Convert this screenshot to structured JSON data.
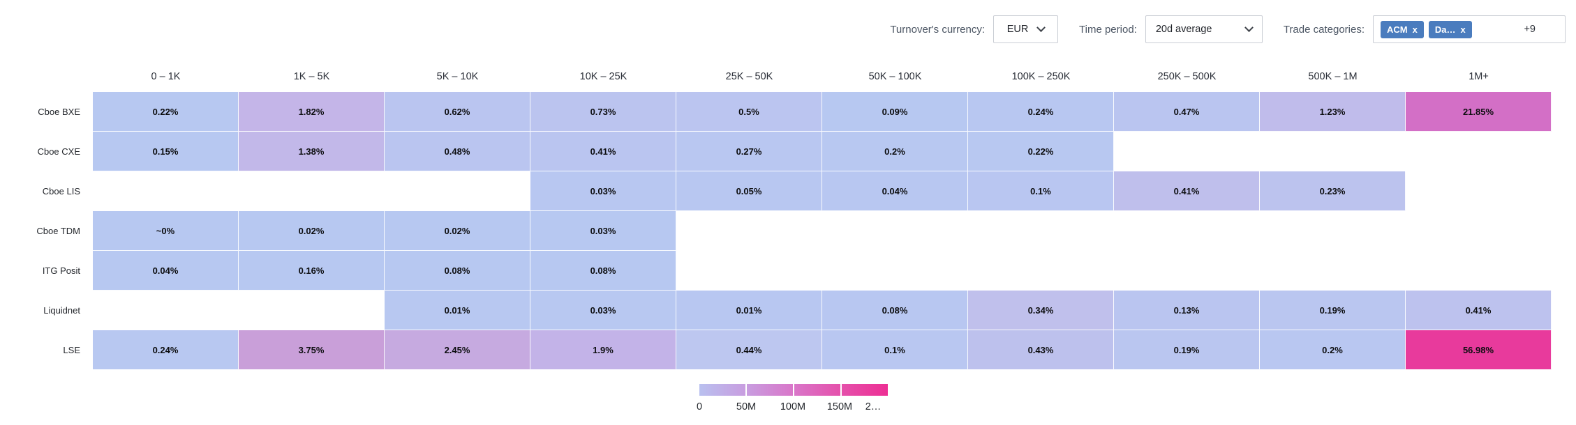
{
  "controls": {
    "currency": {
      "label": "Turnover's currency:",
      "value": "EUR"
    },
    "period": {
      "label": "Time period:",
      "value": "20d average"
    },
    "categories": {
      "label": "Trade categories:",
      "chips": [
        {
          "text": "ACM",
          "remove_icon": "x"
        },
        {
          "text": "Da…",
          "remove_icon": "x"
        }
      ],
      "more": "+9",
      "chip_color": "#4a7cbe"
    }
  },
  "chart_data": {
    "type": "heatmap",
    "title": "",
    "xlabel": "",
    "ylabel": "",
    "columns": [
      "0 – 1K",
      "1K – 5K",
      "5K – 10K",
      "10K – 25K",
      "25K – 50K",
      "50K – 100K",
      "100K – 250K",
      "250K – 500K",
      "500K – 1M",
      "1M+"
    ],
    "rows": [
      {
        "label": "Cboe BXE",
        "cells": [
          {
            "value": "0.22%",
            "color": "#b7c8f1"
          },
          {
            "value": "1.82%",
            "color": "#c4b5e8"
          },
          {
            "value": "0.62%",
            "color": "#bac5f0"
          },
          {
            "value": "0.73%",
            "color": "#bbc4ef"
          },
          {
            "value": "0.5%",
            "color": "#bbc5f0"
          },
          {
            "value": "0.09%",
            "color": "#b7c8f1"
          },
          {
            "value": "0.24%",
            "color": "#b8c7f1"
          },
          {
            "value": "0.47%",
            "color": "#bac5f0"
          },
          {
            "value": "1.23%",
            "color": "#c0bceb"
          },
          {
            "value": "21.85%",
            "color": "#d36fc6"
          }
        ]
      },
      {
        "label": "Cboe CXE",
        "cells": [
          {
            "value": "0.15%",
            "color": "#b7c8f1"
          },
          {
            "value": "1.38%",
            "color": "#c2b8e9"
          },
          {
            "value": "0.48%",
            "color": "#bac5f0"
          },
          {
            "value": "0.41%",
            "color": "#bac5f0"
          },
          {
            "value": "0.27%",
            "color": "#b9c7f1"
          },
          {
            "value": "0.2%",
            "color": "#b8c8f1"
          },
          {
            "value": "0.22%",
            "color": "#b8c8f1"
          },
          null,
          null,
          null
        ]
      },
      {
        "label": "Cboe LIS",
        "cells": [
          null,
          null,
          null,
          {
            "value": "0.03%",
            "color": "#b8c7f1"
          },
          {
            "value": "0.05%",
            "color": "#b8c7f1"
          },
          {
            "value": "0.04%",
            "color": "#b8c7f1"
          },
          {
            "value": "0.1%",
            "color": "#b9c6f1"
          },
          {
            "value": "0.41%",
            "color": "#bfbfec"
          },
          {
            "value": "0.23%",
            "color": "#bcc3ee"
          },
          null
        ]
      },
      {
        "label": "Cboe TDM",
        "cells": [
          {
            "value": "~0%",
            "color": "#b7c8f1"
          },
          {
            "value": "0.02%",
            "color": "#b7c8f1"
          },
          {
            "value": "0.02%",
            "color": "#b7c8f1"
          },
          {
            "value": "0.03%",
            "color": "#b7c8f1"
          },
          null,
          null,
          null,
          null,
          null,
          null
        ]
      },
      {
        "label": "ITG Posit",
        "cells": [
          {
            "value": "0.04%",
            "color": "#b7c8f1"
          },
          {
            "value": "0.16%",
            "color": "#b7c8f1"
          },
          {
            "value": "0.08%",
            "color": "#b7c8f1"
          },
          {
            "value": "0.08%",
            "color": "#b7c8f1"
          },
          null,
          null,
          null,
          null,
          null,
          null
        ]
      },
      {
        "label": "Liquidnet",
        "cells": [
          null,
          null,
          {
            "value": "0.01%",
            "color": "#b8c8f1"
          },
          {
            "value": "0.03%",
            "color": "#b8c8f1"
          },
          {
            "value": "0.01%",
            "color": "#b8c7f1"
          },
          {
            "value": "0.08%",
            "color": "#b8c7f1"
          },
          {
            "value": "0.34%",
            "color": "#c0c0ec"
          },
          {
            "value": "0.13%",
            "color": "#bac5f0"
          },
          {
            "value": "0.19%",
            "color": "#bac6f0"
          },
          {
            "value": "0.41%",
            "color": "#bdc2ee"
          }
        ]
      },
      {
        "label": "LSE",
        "cells": [
          {
            "value": "0.24%",
            "color": "#b8c8f1"
          },
          {
            "value": "3.75%",
            "color": "#c99fd9"
          },
          {
            "value": "2.45%",
            "color": "#c6aae0"
          },
          {
            "value": "1.9%",
            "color": "#c3b3e8"
          },
          {
            "value": "0.44%",
            "color": "#bdc7f0"
          },
          {
            "value": "0.1%",
            "color": "#b9c7f1"
          },
          {
            "value": "0.43%",
            "color": "#bdc1ed"
          },
          {
            "value": "0.19%",
            "color": "#bac6f0"
          },
          {
            "value": "0.2%",
            "color": "#b9c7f1"
          },
          {
            "value": "56.98%",
            "color": "#e83a9c"
          }
        ]
      }
    ],
    "legend": {
      "ticks": [
        "0",
        "50M",
        "100M",
        "150M",
        "2…"
      ],
      "gradient_stops": [
        "#b9c0ef",
        "#c89de0",
        "#d976c9",
        "#e550ab",
        "#ed2f94"
      ]
    }
  }
}
